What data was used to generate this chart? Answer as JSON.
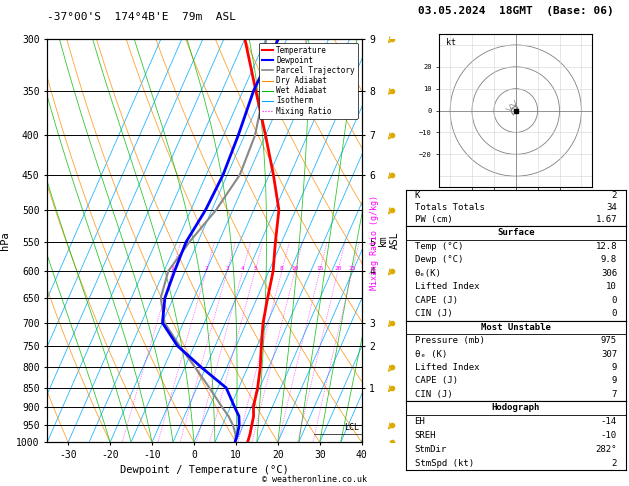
{
  "title_left": "-37°00'S  174°4B'E  79m  ASL",
  "title_right": "03.05.2024  18GMT  (Base: 06)",
  "xlabel": "Dewpoint / Temperature (°C)",
  "ylabel_left": "hPa",
  "ylabel_right_km": "km\nASL",
  "ylabel_mixing": "Mixing Ratio (g/kg)",
  "x_min": -35,
  "x_max": 40,
  "pressure_ticks": [
    300,
    350,
    400,
    450,
    500,
    550,
    600,
    650,
    700,
    750,
    800,
    850,
    900,
    950,
    1000
  ],
  "temp_color": "#ff0000",
  "dewp_color": "#0000ff",
  "parcel_color": "#888888",
  "dry_adiabat_color": "#ff8c00",
  "wet_adiabat_color": "#00bb00",
  "isotherm_color": "#00aaff",
  "mixing_color": "#ff00ff",
  "background": "#ffffff",
  "temp_data": [
    [
      1000,
      12.8
    ],
    [
      975,
      12.5
    ],
    [
      950,
      12.0
    ],
    [
      925,
      11.5
    ],
    [
      900,
      10.5
    ],
    [
      850,
      9.5
    ],
    [
      800,
      8.0
    ],
    [
      750,
      6.0
    ],
    [
      700,
      4.0
    ],
    [
      650,
      2.5
    ],
    [
      600,
      1.0
    ],
    [
      550,
      -1.5
    ],
    [
      500,
      -4.0
    ],
    [
      450,
      -9.0
    ],
    [
      400,
      -15.0
    ],
    [
      350,
      -22.0
    ],
    [
      300,
      -30.0
    ]
  ],
  "dewp_data": [
    [
      1000,
      9.8
    ],
    [
      975,
      9.5
    ],
    [
      950,
      9.0
    ],
    [
      925,
      8.0
    ],
    [
      900,
      6.0
    ],
    [
      850,
      2.0
    ],
    [
      800,
      -6.0
    ],
    [
      750,
      -14.0
    ],
    [
      700,
      -20.0
    ],
    [
      650,
      -22.0
    ],
    [
      600,
      -22.5
    ],
    [
      550,
      -22.8
    ],
    [
      500,
      -21.5
    ],
    [
      450,
      -21.0
    ],
    [
      400,
      -21.5
    ],
    [
      350,
      -22.5
    ],
    [
      300,
      -22.0
    ]
  ],
  "parcel_data": [
    [
      1000,
      10.0
    ],
    [
      975,
      9.0
    ],
    [
      950,
      7.5
    ],
    [
      925,
      5.5
    ],
    [
      900,
      3.0
    ],
    [
      850,
      -2.0
    ],
    [
      800,
      -7.5
    ],
    [
      750,
      -13.5
    ],
    [
      700,
      -19.5
    ],
    [
      650,
      -23.0
    ],
    [
      600,
      -24.0
    ],
    [
      550,
      -22.0
    ],
    [
      500,
      -19.0
    ],
    [
      450,
      -17.0
    ],
    [
      400,
      -17.5
    ],
    [
      350,
      -20.0
    ],
    [
      300,
      -25.0
    ]
  ],
  "km_ticks": {
    "300": 9,
    "350": 8,
    "400": 7,
    "450": 6,
    "550": 5,
    "600": 4,
    "700": 3,
    "750": 2,
    "850": 1
  },
  "mixing_ratio_values": [
    1,
    2,
    3,
    4,
    5,
    8,
    10,
    15,
    20,
    25
  ],
  "lcl_pressure": 975,
  "wind_barb_pressures": [
    300,
    350,
    400,
    450,
    500,
    600,
    700,
    800,
    850,
    950,
    1000
  ],
  "info_K": "2",
  "info_TT": "34",
  "info_PW": "1.67",
  "surf_temp": "12.8",
  "surf_dewp": "9.8",
  "surf_theta": "306",
  "surf_LI": "10",
  "surf_CAPE": "0",
  "surf_CIN": "0",
  "mu_pressure": "975",
  "mu_theta": "307",
  "mu_LI": "9",
  "mu_CAPE": "9",
  "mu_CIN": "7",
  "hodo_EH": "-14",
  "hodo_SREH": "-10",
  "hodo_StmDir": "282°",
  "hodo_StmSpd": "2"
}
